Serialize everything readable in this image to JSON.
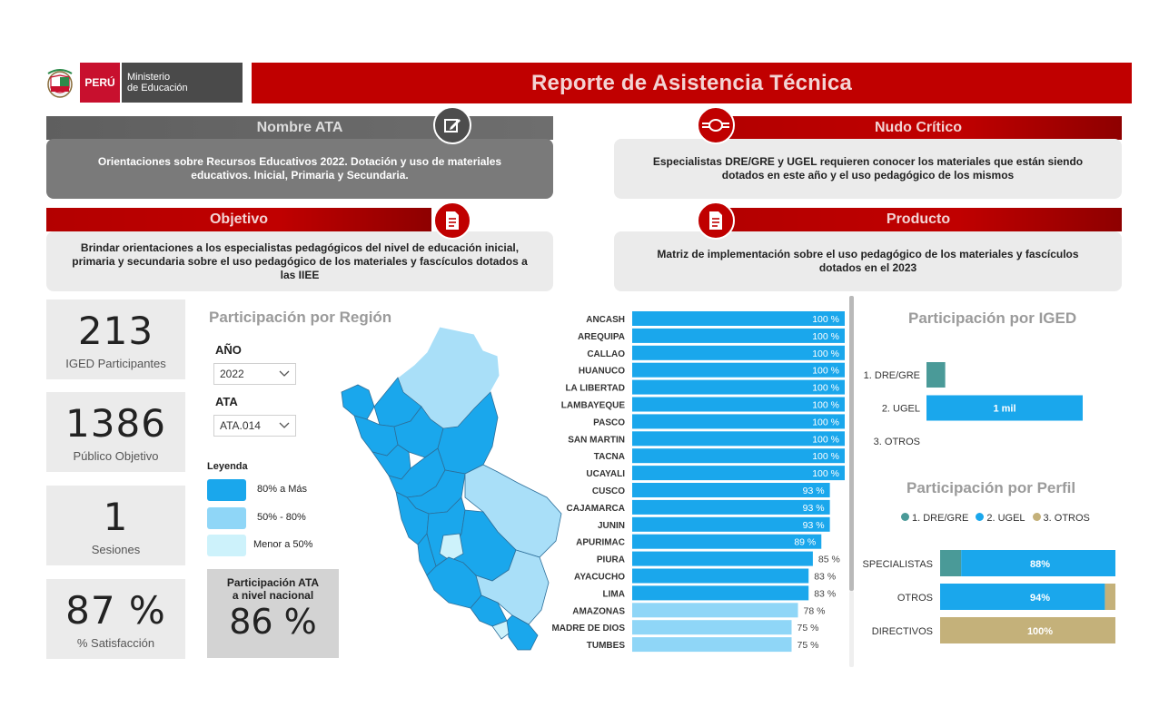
{
  "header": {
    "peru": "PERÚ",
    "ministry_line1": "Ministerio",
    "ministry_line2": "de Educación",
    "title": "Reporte de Asistencia Técnica"
  },
  "sections": {
    "nombre_ata": {
      "title": "Nombre ATA",
      "text": "Orientaciones sobre Recursos Educativos 2022. Dotación y uso de materiales educativos. Inicial, Primaria y Secundaria."
    },
    "nudo_critico": {
      "title": "Nudo Crítico",
      "text": "Especialistas DRE/GRE y UGEL requieren conocer los materiales que están siendo dotados en este año y el uso pedagógico de los mismos"
    },
    "objetivo": {
      "title": "Objetivo",
      "text": "Brindar orientaciones a los especialistas pedagógicos del nivel de educación inicial, primaria y secundaria sobre el uso pedagógico de los materiales y fascículos dotados a las IIEE"
    },
    "producto": {
      "title": "Producto",
      "text": "Matriz de implementación sobre el uso pedagógico de los materiales y fascículos dotados en el 2023"
    }
  },
  "kpis": [
    {
      "value": "213",
      "label": "IGED Participantes"
    },
    {
      "value": "1386",
      "label": "Público Objetivo"
    },
    {
      "value": "1",
      "label": "Sesiones"
    },
    {
      "value": "87 %",
      "label": "% Satisfacción"
    }
  ],
  "region_panel": {
    "title": "Participación por Región",
    "year_label": "AÑO",
    "year_value": "2022",
    "ata_label": "ATA",
    "ata_value": "ATA.014",
    "legend_title": "Leyenda",
    "legend": [
      {
        "label": "80% a Más",
        "color": "#1aa7ec"
      },
      {
        "label": "50% - 80%",
        "color": "#8fd6f7"
      },
      {
        "label": "Menor a 50%",
        "color": "#cdf2fb"
      }
    ],
    "national_label_1": "Participación ATA",
    "national_label_2": "a nivel nacional",
    "national_value": "86 %"
  },
  "chart_data": [
    {
      "type": "bar",
      "orientation": "horizontal",
      "categories": [
        "ANCASH",
        "AREQUIPA",
        "CALLAO",
        "HUANUCO",
        "LA LIBERTAD",
        "LAMBAYEQUE",
        "PASCO",
        "SAN MARTIN",
        "TACNA",
        "UCAYALI",
        "CUSCO",
        "CAJAMARCA",
        "JUNIN",
        "APURIMAC",
        "PIURA",
        "AYACUCHO",
        "LIMA",
        "AMAZONAS",
        "MADRE DE DIOS",
        "TUMBES"
      ],
      "values": [
        100,
        100,
        100,
        100,
        100,
        100,
        100,
        100,
        100,
        100,
        93,
        93,
        93,
        89,
        85,
        83,
        83,
        78,
        75,
        75
      ],
      "labels": [
        "100 %",
        "100 %",
        "100 %",
        "100 %",
        "100 %",
        "100 %",
        "100 %",
        "100 %",
        "100 %",
        "100 %",
        "93 %",
        "93 %",
        "93 %",
        "89 %",
        "85 %",
        "83 %",
        "83 %",
        "78 %",
        "75 %",
        "75 %"
      ],
      "xlim": [
        0,
        100
      ],
      "colors": {
        "high": "#1aa7ec",
        "mid": "#8fd6f7"
      }
    },
    {
      "type": "bar",
      "orientation": "horizontal",
      "title": "Participación por IGED",
      "categories": [
        "1. DRE/GRE",
        "2. UGEL",
        "3. OTROS"
      ],
      "values": [
        120,
        1000,
        0
      ],
      "labels": [
        "",
        "1 mil",
        ""
      ],
      "colors": [
        "#4a9a98",
        "#1aa7ec",
        "#c4b17a"
      ]
    },
    {
      "type": "bar",
      "orientation": "horizontal",
      "stacked": true,
      "title": "Participación por Perfil",
      "legend": [
        "1. DRE/GRE",
        "2. UGEL",
        "3. OTROS"
      ],
      "legend_colors": [
        "#4a9a98",
        "#1aa7ec",
        "#c4b17a"
      ],
      "categories": [
        "ESPECIALISTAS",
        "OTROS",
        "DIRECTIVOS"
      ],
      "series": [
        {
          "name": "1. DRE/GRE",
          "values": [
            12,
            0,
            0
          ]
        },
        {
          "name": "2. UGEL",
          "values": [
            88,
            94,
            0
          ]
        },
        {
          "name": "3. OTROS",
          "values": [
            0,
            6,
            100
          ]
        }
      ],
      "labels": [
        "88%",
        "94%",
        "100%"
      ]
    }
  ],
  "iged_title": "Participación por IGED",
  "perfil_title": "Participación por Perfil"
}
